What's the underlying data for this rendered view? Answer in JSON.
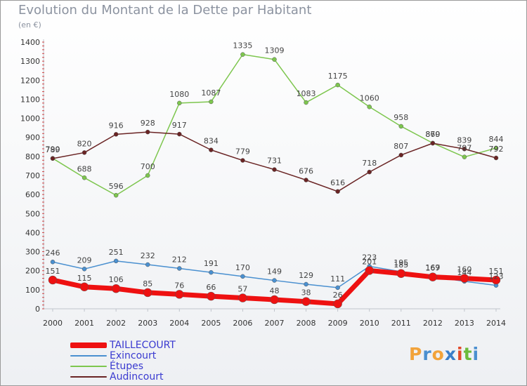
{
  "header": {
    "title": "Evolution du Montant de la Dette par Habitant",
    "unit": "(en €)"
  },
  "logo": {
    "letters": [
      "P",
      "r",
      "o",
      "x",
      "i",
      "t",
      "i"
    ],
    "colors": [
      "#f2a33a",
      "#4a8fd0",
      "#f2a33a",
      "#3a7ec8",
      "#e24a2a",
      "#6cbb3c",
      "#4a8fd0"
    ]
  },
  "chart_data": {
    "type": "line",
    "title": "Evolution du Montant de la Dette par Habitant",
    "xlabel": "",
    "ylabel": "(en €)",
    "x": [
      "2000",
      "2001",
      "2002",
      "2003",
      "2004",
      "2005",
      "2006",
      "2007",
      "2008",
      "2009",
      "2010",
      "2011",
      "2012",
      "2013",
      "2014"
    ],
    "ylim": [
      0,
      1400
    ],
    "yticks": [
      0,
      100,
      200,
      300,
      400,
      500,
      600,
      700,
      800,
      900,
      1000,
      1100,
      1200,
      1300,
      1400
    ],
    "grid": false,
    "legend_position": "bottom-left",
    "series": [
      {
        "name": "TAILLECOURT",
        "color": "#ee1111",
        "values": [
          151,
          115,
          106,
          85,
          76,
          66,
          57,
          48,
          38,
          26,
          201,
          185,
          167,
          160,
          151
        ]
      },
      {
        "name": "Exincourt",
        "color": "#4a90d0",
        "values": [
          246,
          209,
          251,
          232,
          212,
          191,
          170,
          149,
          129,
          111,
          223,
          195,
          169,
          144,
          123
        ]
      },
      {
        "name": "Étupes",
        "color": "#7dc64e",
        "values": [
          790,
          688,
          596,
          700,
          1080,
          1087,
          1335,
          1309,
          1083,
          1175,
          1060,
          958,
          870,
          797,
          844
        ]
      },
      {
        "name": "Audincourt",
        "color": "#6a2424",
        "values": [
          789,
          820,
          916,
          928,
          917,
          834,
          779,
          731,
          676,
          616,
          718,
          807,
          869,
          839,
          792
        ]
      }
    ]
  }
}
